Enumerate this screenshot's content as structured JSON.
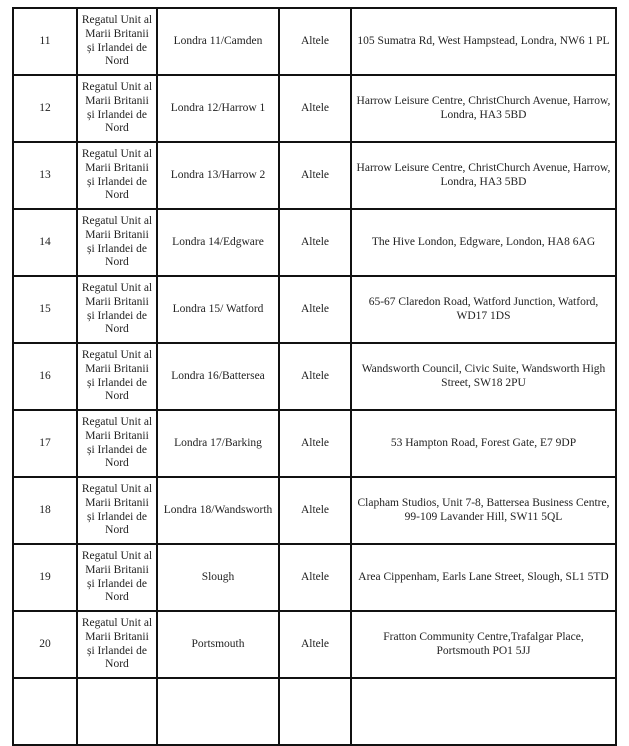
{
  "rows": [
    {
      "nr": "11",
      "country": "Regatul Unit al Marii Britanii și Irlandei de Nord",
      "section": "Londra 11/Camden",
      "type": "Altele",
      "address": "105 Sumatra Rd, West Hampstead, Londra, NW6 1 PL"
    },
    {
      "nr": "12",
      "country": "Regatul Unit al Marii Britanii și Irlandei de Nord",
      "section": "Londra 12/Harrow 1",
      "type": "Altele",
      "address": "Harrow Leisure Centre, ChristChurch Avenue, Harrow, Londra, HA3 5BD"
    },
    {
      "nr": "13",
      "country": "Regatul Unit al Marii Britanii și Irlandei de Nord",
      "section": "Londra 13/Harrow 2",
      "type": "Altele",
      "address": "Harrow Leisure Centre, ChristChurch Avenue, Harrow, Londra, HA3 5BD"
    },
    {
      "nr": "14",
      "country": "Regatul Unit al Marii Britanii și Irlandei de Nord",
      "section": "Londra 14/Edgware",
      "type": "Altele",
      "address": "The Hive London, Edgware, London, HA8 6AG"
    },
    {
      "nr": "15",
      "country": "Regatul Unit al Marii Britanii și Irlandei de Nord",
      "section": "Londra 15/ Watford",
      "type": "Altele",
      "address": "65-67 Claredon Road, Watford Junction, Watford, WD17 1DS"
    },
    {
      "nr": "16",
      "country": "Regatul Unit al Marii Britanii și Irlandei de Nord",
      "section": "Londra 16/Battersea",
      "type": "Altele",
      "address": "Wandsworth Council, Civic Suite, Wandsworth High Street, SW18 2PU"
    },
    {
      "nr": "17",
      "country": "Regatul Unit al Marii Britanii și Irlandei de Nord",
      "section": "Londra 17/Barking",
      "type": "Altele",
      "address": "53 Hampton Road, Forest Gate,  E7 9DP"
    },
    {
      "nr": "18",
      "country": "Regatul Unit al Marii Britanii și Irlandei de Nord",
      "section": "Londra 18/Wandsworth",
      "type": "Altele",
      "address": "Clapham Studios, Unit 7-8, Battersea Business Centre, 99-109 Lavander Hill, SW11 5QL"
    },
    {
      "nr": "19",
      "country": "Regatul Unit al Marii Britanii și Irlandei de Nord",
      "section": "Slough",
      "type": "Altele",
      "address": "Area Cippenham, Earls Lane Street,  Slough, SL1 5TD"
    },
    {
      "nr": "20",
      "country": "Regatul Unit al Marii Britanii și Irlandei de Nord",
      "section": "Portsmouth",
      "type": "Altele",
      "address": "Fratton Community Centre,Trafalgar Place, Portsmouth PO1 5JJ"
    }
  ]
}
